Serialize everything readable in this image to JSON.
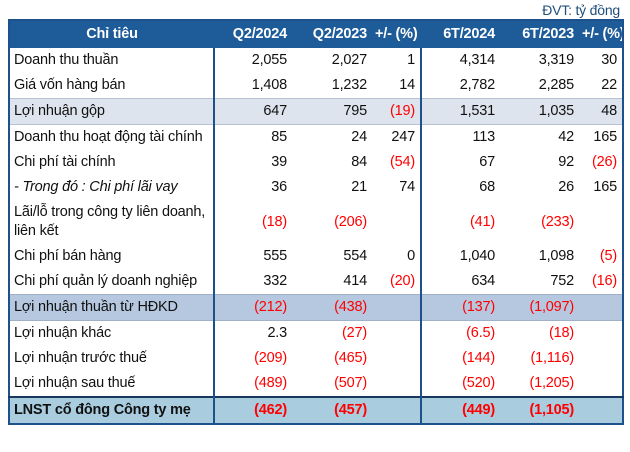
{
  "unit_label": "ĐVT: tỷ đồng",
  "colors": {
    "header_bg": "#1E5B99",
    "border": "#1C518C",
    "border_dark": "#17375E",
    "highlight1": "#DDE4EE",
    "highlight2": "#B6C8DF",
    "total_bg": "#A9CCDF",
    "negative": "#FF0000",
    "unit_text": "#1F4E79"
  },
  "chart_data": {
    "type": "table",
    "title": "",
    "unit": "tỷ đồng",
    "columns": [
      "Chỉ tiêu",
      "Q2/2024",
      "Q2/2023",
      "+/- (%)",
      "6T/2024",
      "6T/2023",
      "+/- (%)"
    ],
    "rows": [
      {
        "label": "Doanh thu thuần",
        "values": [
          "2,055",
          "2,027",
          "1",
          "4,314",
          "3,319",
          "30"
        ],
        "style": ""
      },
      {
        "label": "Giá vốn hàng bán",
        "values": [
          "1,408",
          "1,232",
          "14",
          "2,782",
          "2,285",
          "22"
        ],
        "style": ""
      },
      {
        "label": "Lợi nhuận gộp",
        "values": [
          "647",
          "795",
          "(19)",
          "1,531",
          "1,035",
          "48"
        ],
        "style": "highlight1"
      },
      {
        "label": "Doanh thu hoạt động tài chính",
        "values": [
          "85",
          "24",
          "247",
          "113",
          "42",
          "165"
        ],
        "style": ""
      },
      {
        "label": "Chi phí tài chính",
        "values": [
          "39",
          "84",
          "(54)",
          "67",
          "92",
          "(26)"
        ],
        "style": ""
      },
      {
        "label": "- Trong đó : Chi phí lãi vay",
        "values": [
          "36",
          "21",
          "74",
          "68",
          "26",
          "165"
        ],
        "style": "italic"
      },
      {
        "label": "Lãi/lỗ trong công ty liên doanh, liên kết",
        "values": [
          "(18)",
          "(206)",
          "",
          "(41)",
          "(233)",
          ""
        ],
        "style": ""
      },
      {
        "label": "Chi phí bán hàng",
        "values": [
          "555",
          "554",
          "0",
          "1,040",
          "1,098",
          "(5)"
        ],
        "style": ""
      },
      {
        "label": "Chi phí quản lý doanh nghiệp",
        "values": [
          "332",
          "414",
          "(20)",
          "634",
          "752",
          "(16)"
        ],
        "style": ""
      },
      {
        "label": "Lợi nhuận thuần từ HĐKD",
        "values": [
          "(212)",
          "(438)",
          "",
          "(137)",
          "(1,097)",
          ""
        ],
        "style": "highlight2"
      },
      {
        "label": "Lợi nhuận khác",
        "values": [
          "2.3",
          "(27)",
          "",
          "(6.5)",
          "(18)",
          ""
        ],
        "style": ""
      },
      {
        "label": "Lợi nhuận trước thuế",
        "values": [
          "(209)",
          "(465)",
          "",
          "(144)",
          "(1,116)",
          ""
        ],
        "style": ""
      },
      {
        "label": "Lợi nhuận sau thuế",
        "values": [
          "(489)",
          "(507)",
          "",
          "(520)",
          "(1,205)",
          ""
        ],
        "style": ""
      },
      {
        "label": "LNST cổ đông Công ty mẹ",
        "values": [
          "(462)",
          "(457)",
          "",
          "(449)",
          "(1,105)",
          ""
        ],
        "style": "total"
      }
    ]
  }
}
